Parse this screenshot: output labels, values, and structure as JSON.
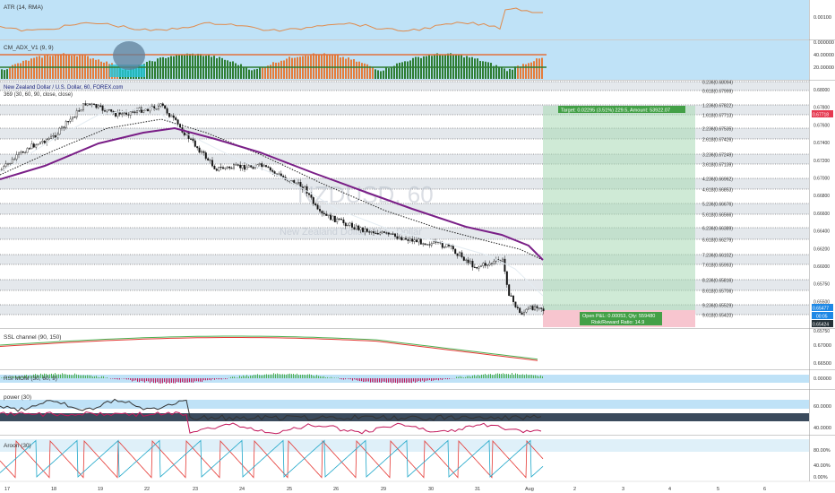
{
  "main": {
    "title": "New Zealand Dollar / U.S. Dollar, 60, FOREX.com",
    "indicator": "369 (30, 60, 90, close, close)",
    "watermark_symbol": "NZDUSD, 60",
    "watermark_desc": "New Zealand Dollar / U.S. Dollar",
    "price_axis": [
      "0.68000",
      "0.67800",
      "0.67600",
      "0.67400",
      "0.67200",
      "0.67000",
      "0.66800",
      "0.66600",
      "0.66400",
      "0.66200",
      "0.66000",
      "0.65750",
      "0.65500"
    ],
    "current_price": "0.65477",
    "countdown": "00:05",
    "stop_price": "0.65424",
    "top_price_tag": "0.67718",
    "bottom_price_tag": "0.65750",
    "fib_levels": [
      "0.236(0.68094)",
      "0.618(0.67999)",
      "1.236(0.67822)",
      "1.618(0.67713)",
      "2.236(0.67535)",
      "2.618(0.67426)",
      "3.236(0.67249)",
      "3.618(0.67139)",
      "4.236(0.66962)",
      "4.618(0.66853)",
      "5.236(0.66676)",
      "5.618(0.66566)",
      "6.236(0.66389)",
      "6.618(0.66279)",
      "7.236(0.66102)",
      "7.618(0.65993)",
      "8.236(0.65816)",
      "8.618(0.65706)",
      "9.236(0.65529)",
      "9.618(0.65420)"
    ],
    "target_label": "Target: 0.02295 (3.51%) 229.5, Amount: 53922.07",
    "open_pnl": "Open P&L: 0.00053, Qty: 559480",
    "risk_reward": "Risk/Reward Ratio: 14.9"
  },
  "atr": {
    "label": "ATR (14, RMA)",
    "value": "0.00100"
  },
  "adx": {
    "label": "CM_ADX_V1 (9, 9)",
    "ticks": [
      "0.000000",
      "40.00000",
      "20.00000"
    ]
  },
  "ssl": {
    "label": "SSL channel (90, 150)",
    "ticks": [
      "0.67000",
      "0.66500"
    ]
  },
  "rsi_mom": {
    "label": "RSI MOM (30, 60, 9)",
    "value": "0.00000"
  },
  "power": {
    "label": "power (30)",
    "ticks": [
      "60.0000",
      "40.0000"
    ]
  },
  "aroon": {
    "label": "Aroon (30)",
    "ticks": [
      "80.00%",
      "40.00%",
      "0.00%"
    ]
  },
  "time_axis": [
    "17",
    "18",
    "19",
    "22",
    "23",
    "24",
    "25",
    "26",
    "29",
    "30",
    "31",
    "Aug",
    "2",
    "3",
    "4",
    "5",
    "6"
  ],
  "colors": {
    "accent": "#2196f3",
    "target": "#4caf50",
    "stop": "#f7c5cf",
    "ma": "#7a1f87"
  }
}
